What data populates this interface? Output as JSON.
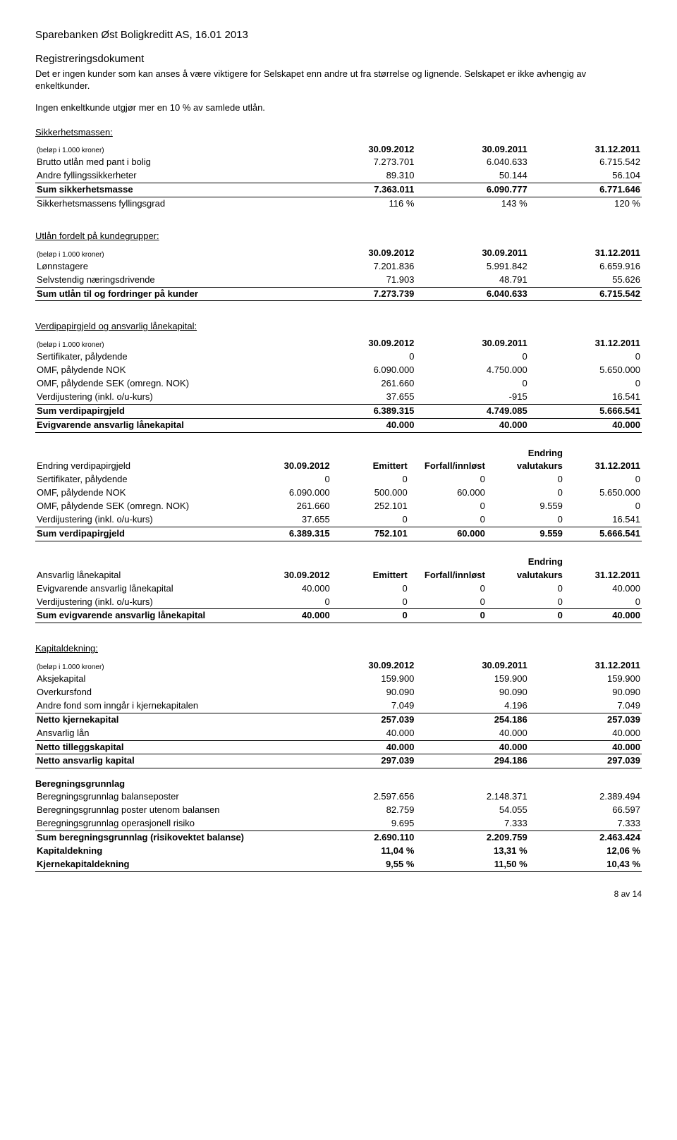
{
  "header": "Sparebanken Øst Boligkreditt AS, 16.01 2013",
  "subheader": "Registreringsdokument",
  "intro1": "Det er ingen kunder som kan anses å være viktigere for Selskapet enn andre ut fra størrelse og lignende. Selskapet er ikke avhengig av enkeltkunder.",
  "intro2": "Ingen enkeltkunde utgjør mer en 10 % av samlede utlån.",
  "amounts_note": "(beløp i 1.000 kroner)",
  "dates": [
    "30.09.2012",
    "30.09.2011",
    "31.12.2011"
  ],
  "sec1": {
    "title": "Sikkerhetsmassen:",
    "rows": [
      {
        "label": "Brutto utlån med pant i bolig",
        "v": [
          "7.273.701",
          "6.040.633",
          "6.715.542"
        ],
        "u": false,
        "b": false
      },
      {
        "label": "Andre fyllingssikkerheter",
        "v": [
          "89.310",
          "50.144",
          "56.104"
        ],
        "u": true,
        "b": false
      },
      {
        "label": "Sum sikkerhetsmasse",
        "v": [
          "7.363.011",
          "6.090.777",
          "6.771.646"
        ],
        "u": true,
        "b": true
      },
      {
        "label": "Sikkerhetsmassens fyllingsgrad",
        "v": [
          "116 %",
          "143 %",
          "120 %"
        ],
        "u": false,
        "b": false
      }
    ]
  },
  "sec2": {
    "title": "Utlån fordelt på kundegrupper:",
    "rows": [
      {
        "label": "Lønnstagere",
        "v": [
          "7.201.836",
          "5.991.842",
          "6.659.916"
        ],
        "u": false,
        "b": false
      },
      {
        "label": "Selvstendig næringsdrivende",
        "v": [
          "71.903",
          "48.791",
          "55.626"
        ],
        "u": true,
        "b": false
      },
      {
        "label": "Sum utlån til og fordringer på kunder",
        "v": [
          "7.273.739",
          "6.040.633",
          "6.715.542"
        ],
        "u": true,
        "b": true
      }
    ]
  },
  "sec3": {
    "title": "Verdipapirgjeld og ansvarlig lånekapital:",
    "rows": [
      {
        "label": "Sertifikater, pålydende",
        "v": [
          "0",
          "0",
          "0"
        ],
        "u": false,
        "b": false
      },
      {
        "label": "OMF, pålydende NOK",
        "v": [
          "6.090.000",
          "4.750.000",
          "5.650.000"
        ],
        "u": false,
        "b": false
      },
      {
        "label": "OMF, pålydende SEK (omregn. NOK)",
        "v": [
          "261.660",
          "0",
          "0"
        ],
        "u": false,
        "b": false
      },
      {
        "label": "Verdijustering (inkl. o/u-kurs)",
        "v": [
          "37.655",
          "-915",
          "16.541"
        ],
        "u": true,
        "b": false
      },
      {
        "label": "Sum verdipapirgjeld",
        "v": [
          "6.389.315",
          "4.749.085",
          "5.666.541"
        ],
        "u": true,
        "b": true
      },
      {
        "label": "Evigvarende ansvarlig lånekapital",
        "v": [
          "40.000",
          "40.000",
          "40.000"
        ],
        "u": true,
        "b": true
      }
    ]
  },
  "sec4": {
    "head_label": "Endring verdipapirgjeld",
    "cols": [
      "30.09.2012",
      "Emittert",
      "Forfall/innløst",
      "Endring valutakurs",
      "31.12.2011"
    ],
    "rows": [
      {
        "label": "Sertifikater, pålydende",
        "v": [
          "0",
          "0",
          "0",
          "0",
          "0"
        ],
        "u": false,
        "b": false
      },
      {
        "label": "OMF, pålydende NOK",
        "v": [
          "6.090.000",
          "500.000",
          "60.000",
          "0",
          "5.650.000"
        ],
        "u": false,
        "b": false
      },
      {
        "label": "OMF, pålydende SEK (omregn. NOK)",
        "v": [
          "261.660",
          "252.101",
          "0",
          "9.559",
          "0"
        ],
        "u": false,
        "b": false
      },
      {
        "label": "Verdijustering (inkl. o/u-kurs)",
        "v": [
          "37.655",
          "0",
          "0",
          "0",
          "16.541"
        ],
        "u": true,
        "b": false
      },
      {
        "label": "Sum verdipapirgjeld",
        "v": [
          "6.389.315",
          "752.101",
          "60.000",
          "9.559",
          "5.666.541"
        ],
        "u": true,
        "b": true
      }
    ]
  },
  "sec5": {
    "head_label": "Ansvarlig lånekapital",
    "cols": [
      "30.09.2012",
      "Emittert",
      "Forfall/innløst",
      "Endring valutakurs",
      "31.12.2011"
    ],
    "rows": [
      {
        "label": "Evigvarende ansvarlig lånekapital",
        "v": [
          "40.000",
          "0",
          "0",
          "0",
          "40.000"
        ],
        "u": false,
        "b": false
      },
      {
        "label": "Verdijustering (inkl. o/u-kurs)",
        "v": [
          "0",
          "0",
          "0",
          "0",
          "0"
        ],
        "u": true,
        "b": false
      },
      {
        "label": "Sum evigvarende ansvarlig lånekapital",
        "v": [
          "40.000",
          "0",
          "0",
          "0",
          "40.000"
        ],
        "u": true,
        "b": true
      }
    ]
  },
  "sec6": {
    "title": "Kapitaldekning:",
    "rows": [
      {
        "label": "Aksjekapital",
        "v": [
          "159.900",
          "159.900",
          "159.900"
        ],
        "u": false,
        "b": false
      },
      {
        "label": "Overkursfond",
        "v": [
          "90.090",
          "90.090",
          "90.090"
        ],
        "u": false,
        "b": false
      },
      {
        "label": "Andre fond som inngår i kjernekapitalen",
        "v": [
          "7.049",
          "4.196",
          "7.049"
        ],
        "u": true,
        "b": false
      },
      {
        "label": "Netto kjernekapital",
        "v": [
          "257.039",
          "254.186",
          "257.039"
        ],
        "u": false,
        "b": true
      },
      {
        "label": "Ansvarlig lån",
        "v": [
          "40.000",
          "40.000",
          "40.000"
        ],
        "u": true,
        "b": false
      },
      {
        "label": "Netto tilleggskapital",
        "v": [
          "40.000",
          "40.000",
          "40.000"
        ],
        "u": true,
        "b": true
      },
      {
        "label": "Netto ansvarlig kapital",
        "v": [
          "297.039",
          "294.186",
          "297.039"
        ],
        "u": true,
        "b": true
      }
    ]
  },
  "sec7": {
    "title": "Beregningsgrunnlag",
    "rows": [
      {
        "label": "Beregningsgrunnlag balanseposter",
        "v": [
          "2.597.656",
          "2.148.371",
          "2.389.494"
        ],
        "u": false,
        "b": false
      },
      {
        "label": "Beregningsgrunnlag poster utenom balansen",
        "v": [
          "82.759",
          "54.055",
          "66.597"
        ],
        "u": false,
        "b": false
      },
      {
        "label": "Beregningsgrunnlag operasjonell risiko",
        "v": [
          "9.695",
          "7.333",
          "7.333"
        ],
        "u": true,
        "b": false
      },
      {
        "label": "Sum beregningsgrunnlag (risikovektet balanse)",
        "v": [
          "2.690.110",
          "2.209.759",
          "2.463.424"
        ],
        "u": false,
        "b": true
      },
      {
        "label": "Kapitaldekning",
        "v": [
          "11,04 %",
          "13,31 %",
          "12,06 %"
        ],
        "u": false,
        "b": true
      },
      {
        "label": "Kjernekapitaldekning",
        "v": [
          "9,55 %",
          "11,50 %",
          "10,43 %"
        ],
        "u": true,
        "b": true
      }
    ]
  },
  "endring_label": "Endring",
  "footer": "8 av 14"
}
